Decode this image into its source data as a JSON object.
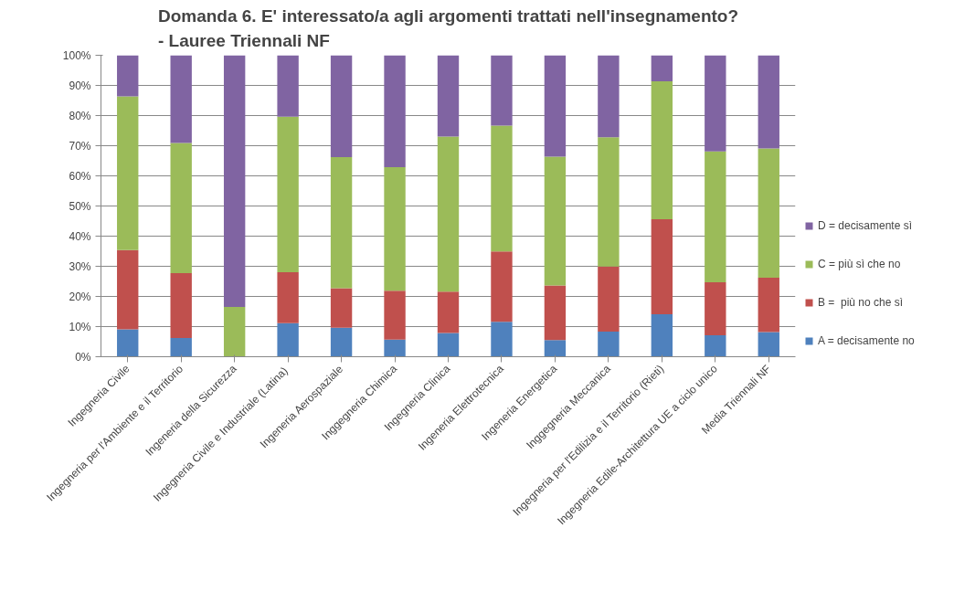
{
  "chart_data": {
    "type": "bar",
    "stacked": true,
    "title": "Domanda 6. E' interessato/a agli argomenti trattati nell'insegnamento?\n- Lauree Triennali NF",
    "categories": [
      "Ingegneria Civile",
      "Ingegneria per l'Ambiente e il Territorio",
      "Ingeneria della Sicurezza",
      "Ingegneria Civile e Industriale  (Latina)",
      "Ingeneria Aerospaziale",
      "Inggegneria Chimica",
      "Ingegneria Clinica",
      "Ingeneria Elettrotecnica",
      "Ingeneria Energetica",
      "Inggegneria Meccanica",
      "Ingegneria per l'Edilizia e il Territorio (Rieti)",
      "Ingegneria Edile-Architettura UE a ciclo unico",
      "Media Triennali NF"
    ],
    "series": [
      {
        "name": "A = decisamente no",
        "color": "#4f81bd",
        "values": [
          9.1,
          6.2,
          0,
          11.1,
          9.6,
          5.7,
          7.9,
          11.6,
          5.5,
          8.3,
          14.1,
          7.1,
          8.2
        ]
      },
      {
        "name": "B =  più no che sì",
        "color": "#c0504d",
        "values": [
          26.3,
          21.5,
          0,
          16.9,
          13.1,
          16.2,
          13.7,
          23.3,
          18.1,
          21.6,
          31.5,
          17.6,
          18.0
        ]
      },
      {
        "name": "C = più sì che no",
        "color": "#9bbb59",
        "values": [
          51.0,
          43.2,
          16.5,
          51.6,
          43.5,
          41.0,
          51.4,
          41.8,
          42.8,
          42.9,
          45.8,
          43.4,
          42.9
        ]
      },
      {
        "name": "D = decisamente sì",
        "color": "#8064a2",
        "values": [
          13.6,
          29.1,
          83.5,
          20.4,
          33.8,
          37.1,
          27.0,
          23.3,
          33.6,
          27.2,
          8.6,
          31.9,
          30.9
        ]
      }
    ],
    "ylim": [
      0,
      100
    ],
    "yticks": [
      {
        "value": 0,
        "label": "0%"
      },
      {
        "value": 10,
        "label": "10%"
      },
      {
        "value": 20,
        "label": "20%"
      },
      {
        "value": 30,
        "label": "30%"
      },
      {
        "value": 40,
        "label": "40%"
      },
      {
        "value": 50,
        "label": "50%"
      },
      {
        "value": 60,
        "label": "60%"
      },
      {
        "value": 70,
        "label": "70%"
      },
      {
        "value": 80,
        "label": "80%"
      },
      {
        "value": 90,
        "label": "90%"
      },
      {
        "value": 100,
        "label": "100%"
      }
    ],
    "grid": "y",
    "legend": "right"
  }
}
